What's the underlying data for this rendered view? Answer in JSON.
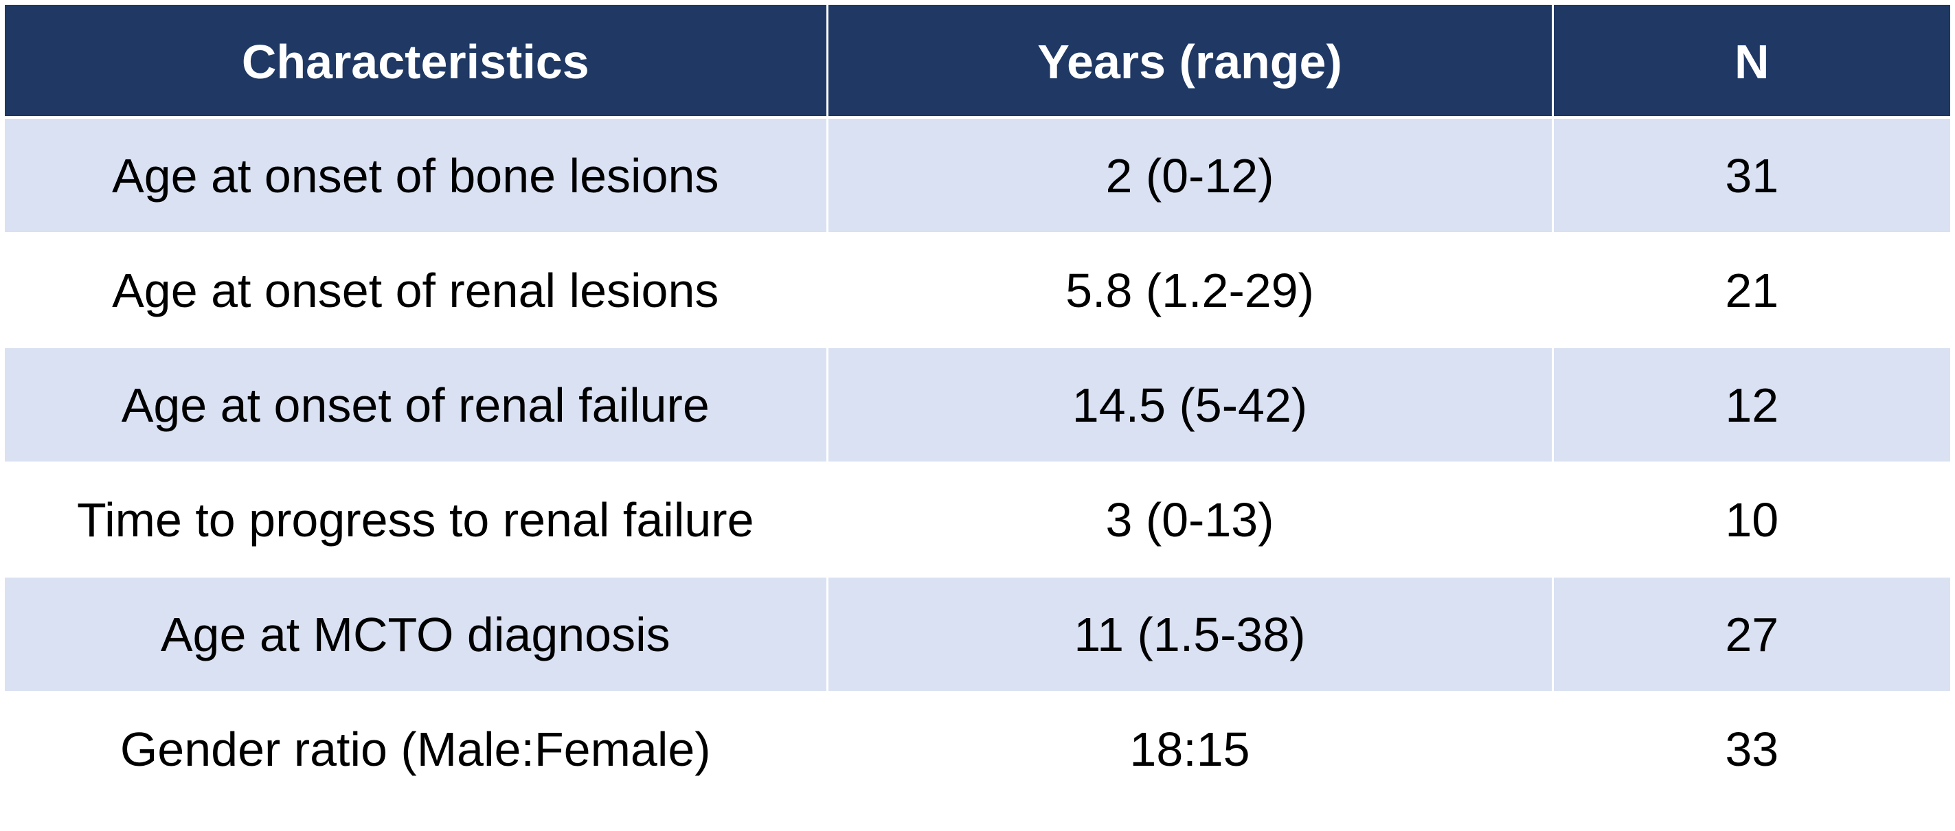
{
  "table": {
    "headers": [
      "Characteristics",
      "Years (range)",
      "N"
    ],
    "rows": [
      [
        "Age at onset of bone lesions",
        "2 (0-12)",
        "31"
      ],
      [
        "Age at onset of renal lesions",
        "5.8 (1.2-29)",
        "21"
      ],
      [
        "Age at onset of renal failure",
        "14.5 (5-42)",
        "12"
      ],
      [
        "Time to progress to renal failure",
        "3 (0-13)",
        "10"
      ],
      [
        "Age at MCTO diagnosis",
        "11 (1.5-38)",
        "27"
      ],
      [
        "Gender ratio (Male:Female)",
        "18:15",
        "33"
      ]
    ]
  },
  "colors": {
    "header_bg": "#1f3864",
    "header_text": "#ffffff",
    "band_shaded": "#d9e1f2",
    "band_plain": "#ffffff"
  }
}
